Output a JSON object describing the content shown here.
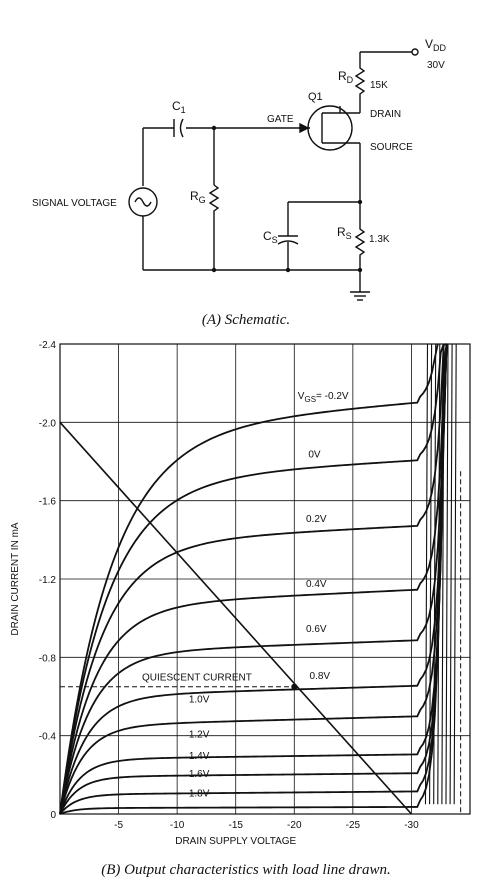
{
  "schematic": {
    "vdd_label": "V",
    "vdd_sub": "DD",
    "vdd_value": "30V",
    "rd_label": "R",
    "rd_sub": "D",
    "rd_value": "15K",
    "q1_label": "Q1",
    "drain_label": "DRAIN",
    "source_label": "SOURCE",
    "gate_label": "GATE",
    "c1_label": "C",
    "c1_sub": "1",
    "rg_label": "R",
    "rg_sub": "G",
    "cs_label": "C",
    "cs_sub": "S",
    "rs_label": "R",
    "rs_sub": "S",
    "rs_value": "1.3K",
    "signal_label": "SIGNAL VOLTAGE"
  },
  "caption_a": "(A) Schematic.",
  "caption_b": "(B) Output characteristics with load line drawn.",
  "chart_data": {
    "type": "line",
    "xlabel": "DRAIN SUPPLY VOLTAGE",
    "ylabel": "DRAIN CURRENT IN mA",
    "xlim": [
      0,
      -35
    ],
    "ylim": [
      0,
      -2.4
    ],
    "x_ticks": [
      "-5",
      "-10",
      "-15",
      "-20",
      "-25",
      "-30"
    ],
    "y_ticks": [
      "0",
      "-0.4",
      "-0.8",
      "-1.2",
      "-1.6",
      "-2.0",
      "-2.4"
    ],
    "grid": true,
    "series": [
      {
        "name": "V",
        "name_sub": "GS",
        "name_suffix": "= -0.2V",
        "sat": -1.95,
        "slope": -0.005
      },
      {
        "name": "0V",
        "sat": -1.7,
        "slope": -0.0035
      },
      {
        "name": "0.2V",
        "sat": -1.38,
        "slope": -0.003
      },
      {
        "name": "0.4V",
        "sat": -1.06,
        "slope": -0.0028
      },
      {
        "name": "0.6V",
        "sat": -0.82,
        "slope": -0.0022
      },
      {
        "name": "0.8V",
        "sat": -0.6,
        "slope": -0.0018
      },
      {
        "name": "1.0V",
        "sat": -0.45,
        "slope": -0.0016
      },
      {
        "name": "1.2V",
        "sat": -0.28,
        "slope": -0.0008
      },
      {
        "name": "1.4V",
        "sat": -0.19,
        "slope": -0.0006
      },
      {
        "name": "1.6V",
        "sat": -0.1,
        "slope": -0.0005
      },
      {
        "name": "1.8V",
        "sat": -0.03,
        "slope": -0.0002
      }
    ],
    "load_line": {
      "x": [
        0,
        -30
      ],
      "y": [
        -2.0,
        0
      ]
    },
    "quiescent": {
      "label": "QUIESCENT CURRENT",
      "x": -20,
      "y": -0.65
    },
    "breakdown_x": -31
  }
}
